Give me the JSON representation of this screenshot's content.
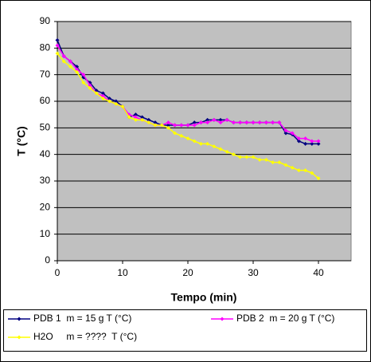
{
  "chart_data": {
    "type": "line",
    "x_label": "Tempo (min)",
    "y_label": "T (°C)",
    "x": [
      0,
      1,
      2,
      3,
      4,
      5,
      6,
      7,
      8,
      9,
      10,
      11,
      12,
      13,
      14,
      15,
      16,
      17,
      18,
      19,
      20,
      21,
      22,
      23,
      24,
      25,
      26,
      27,
      28,
      29,
      30,
      31,
      32,
      33,
      34,
      35,
      36,
      37,
      38,
      39,
      40
    ],
    "series": [
      {
        "name": "PDB 1  m = 15 g T (°C)",
        "color": "#000080",
        "values": [
          83,
          77,
          75,
          73,
          69,
          67,
          64,
          63,
          61,
          60,
          58,
          54,
          55,
          54,
          53,
          52,
          51,
          51,
          51,
          51,
          51,
          52,
          52,
          53,
          53,
          53,
          53,
          52,
          52,
          52,
          52,
          52,
          52,
          52,
          52,
          48,
          47.5,
          45,
          44,
          44,
          44
        ]
      },
      {
        "name": "PDB 2  m = 20 g T (°C)",
        "color": "#ff00ff",
        "values": [
          81,
          77,
          75,
          72,
          70,
          66,
          63,
          62,
          60,
          59,
          58,
          55,
          54,
          53,
          52,
          51,
          51,
          52,
          51,
          51,
          51,
          51,
          52,
          52,
          53,
          52,
          53,
          52,
          52,
          52,
          52,
          52,
          52,
          52,
          52,
          49,
          48,
          46,
          46,
          45,
          45
        ]
      },
      {
        "name": "H2O     m = ????  T (°C)",
        "color": "#ffff00",
        "values": [
          78,
          75,
          73,
          71,
          67,
          65,
          63,
          61,
          60,
          59,
          58,
          54,
          53,
          53,
          52,
          51,
          51,
          50,
          48,
          47,
          46,
          45,
          44,
          44,
          43,
          42,
          41,
          40,
          39,
          39,
          39,
          38,
          38,
          37,
          37,
          36,
          35,
          34,
          34,
          33,
          31
        ]
      }
    ],
    "xlim": [
      0,
      45
    ],
    "xticks": [
      0,
      10,
      20,
      30,
      40
    ],
    "ylim": [
      0,
      90
    ],
    "yticks": [
      0,
      10,
      20,
      30,
      40,
      50,
      60,
      70,
      80,
      90
    ],
    "grid": true,
    "legend": "bottom"
  }
}
